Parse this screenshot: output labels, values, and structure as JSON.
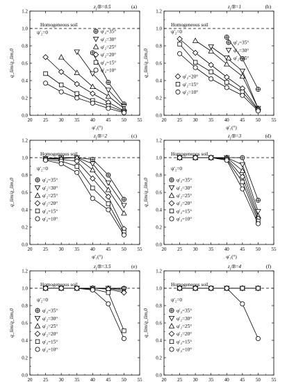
{
  "figure": {
    "ylabel": "q_lim/q_lim,0",
    "xlabel": "φ'₁(°)",
    "reference_label": "Homogeneous soil",
    "phi2_zero_label": "ψ'₂=0"
  },
  "chart_data": [
    {
      "type": "line",
      "panel": "(a)",
      "ratio_label": "z_t/B=0.5",
      "xlim": [
        20,
        55
      ],
      "ylim": [
        0,
        1.2
      ],
      "xticks": [
        20,
        25,
        30,
        35,
        40,
        45,
        50,
        55
      ],
      "yticks": [
        0.0,
        0.2,
        0.4,
        0.6,
        0.8,
        1.0,
        1.2
      ],
      "reference_line": 1.0,
      "legend_position": "upper right",
      "series": [
        {
          "name": "φ'₂=35°",
          "marker": "crossed-circle",
          "x": [
            40,
            45,
            50
          ],
          "y": [
            0.72,
            0.38,
            0.13
          ]
        },
        {
          "name": "φ'₂=30°",
          "marker": "triangle-down",
          "x": [
            35,
            40,
            45,
            50
          ],
          "y": [
            0.73,
            0.48,
            0.29,
            0.1
          ]
        },
        {
          "name": "φ'₂=25°",
          "marker": "triangle-up",
          "x": [
            30,
            35,
            40,
            45,
            50
          ],
          "y": [
            0.67,
            0.49,
            0.33,
            0.22,
            0.08
          ]
        },
        {
          "name": "φ'₂=20°",
          "marker": "diamond",
          "x": [
            25,
            30,
            35,
            40,
            45,
            50
          ],
          "y": [
            0.67,
            0.5,
            0.36,
            0.25,
            0.15,
            0.05
          ]
        },
        {
          "name": "φ'₂=15°",
          "marker": "square",
          "x": [
            25,
            30,
            35,
            40,
            45,
            50
          ],
          "y": [
            0.48,
            0.35,
            0.25,
            0.17,
            0.11,
            0.04
          ]
        },
        {
          "name": "φ'₂=10°",
          "marker": "circle",
          "x": [
            25,
            30,
            35,
            40,
            45,
            50
          ],
          "y": [
            0.37,
            0.27,
            0.2,
            0.14,
            0.08,
            0.03
          ]
        }
      ]
    },
    {
      "type": "line",
      "panel": "(b)",
      "ratio_label": "z_t/B=1",
      "xlim": [
        20,
        55
      ],
      "ylim": [
        0,
        1.2
      ],
      "xticks": [
        20,
        25,
        30,
        35,
        40,
        45,
        50,
        55
      ],
      "yticks": [
        0.0,
        0.2,
        0.4,
        0.6,
        0.8,
        1.0,
        1.2
      ],
      "reference_line": 1.0,
      "legend_position": "split",
      "series": [
        {
          "name": "φ'₂=35°",
          "marker": "crossed-circle",
          "x": [
            40,
            45,
            50
          ],
          "y": [
            0.9,
            0.65,
            0.3
          ]
        },
        {
          "name": "φ'₂=30°",
          "marker": "triangle-down",
          "x": [
            35,
            40,
            45,
            50
          ],
          "y": [
            0.79,
            0.66,
            0.51,
            0.08
          ]
        },
        {
          "name": "φ'₂=25°",
          "marker": "triangle-up",
          "x": [
            30,
            35,
            40,
            45,
            50
          ],
          "y": [
            0.86,
            0.74,
            0.59,
            0.45,
            0.08
          ]
        },
        {
          "name": "φ'₂=20°",
          "marker": "diamond",
          "x": [
            25,
            30,
            35,
            40,
            45,
            50
          ],
          "y": [
            0.88,
            0.72,
            0.58,
            0.44,
            0.31,
            0.07
          ]
        },
        {
          "name": "φ'₂=15°",
          "marker": "square",
          "x": [
            25,
            30,
            35,
            40,
            45,
            50
          ],
          "y": [
            0.82,
            0.61,
            0.5,
            0.38,
            0.27,
            0.06
          ]
        },
        {
          "name": "φ'₂=10°",
          "marker": "circle",
          "x": [
            25,
            30,
            35,
            40,
            45,
            50
          ],
          "y": [
            0.71,
            0.55,
            0.42,
            0.32,
            0.23,
            0.05
          ]
        }
      ]
    },
    {
      "type": "line",
      "panel": "(c)",
      "ratio_label": "z_t/B=2",
      "xlim": [
        20,
        55
      ],
      "ylim": [
        0,
        1.2
      ],
      "xticks": [
        20,
        25,
        30,
        35,
        40,
        45,
        50,
        55
      ],
      "yticks": [
        0.0,
        0.2,
        0.4,
        0.6,
        0.8,
        1.0,
        1.2
      ],
      "reference_line": 1.0,
      "legend_position": "lower left",
      "series": [
        {
          "name": "φ'₂=35°",
          "marker": "crossed-circle",
          "x": [
            25,
            30,
            35,
            40,
            45,
            50
          ],
          "y": [
            0.99,
            1.0,
            1.0,
            0.98,
            0.8,
            0.52
          ]
        },
        {
          "name": "φ'₂=30°",
          "marker": "triangle-down",
          "x": [
            25,
            30,
            35,
            40,
            45,
            50
          ],
          "y": [
            0.99,
            1.0,
            1.0,
            0.93,
            0.71,
            0.45
          ]
        },
        {
          "name": "φ'₂=25°",
          "marker": "triangle-up",
          "x": [
            25,
            30,
            35,
            40,
            45,
            50
          ],
          "y": [
            0.99,
            0.99,
            1.0,
            0.86,
            0.63,
            0.36
          ]
        },
        {
          "name": "φ'₂=20°",
          "marker": "diamond",
          "x": [
            25,
            30,
            35,
            40,
            45,
            50
          ],
          "y": [
            0.99,
            0.98,
            0.96,
            0.76,
            0.55,
            0.18
          ]
        },
        {
          "name": "φ'₂=15°",
          "marker": "square",
          "x": [
            25,
            30,
            35,
            40,
            45,
            50
          ],
          "y": [
            0.98,
            0.96,
            0.9,
            0.65,
            0.47,
            0.14
          ]
        },
        {
          "name": "φ'₂=10°",
          "marker": "circle",
          "x": [
            25,
            30,
            35,
            40,
            45,
            50
          ],
          "y": [
            0.97,
            0.93,
            0.83,
            0.53,
            0.4,
            0.11
          ]
        }
      ]
    },
    {
      "type": "line",
      "panel": "(d)",
      "ratio_label": "z_t/B=3",
      "xlim": [
        20,
        55
      ],
      "ylim": [
        0,
        1.2
      ],
      "xticks": [
        20,
        25,
        30,
        35,
        40,
        45,
        50,
        55
      ],
      "yticks": [
        0.0,
        0.2,
        0.4,
        0.6,
        0.8,
        1.0,
        1.2
      ],
      "reference_line": 1.0,
      "legend_position": "lower left",
      "series": [
        {
          "name": "φ'₂=35°",
          "marker": "crossed-circle",
          "x": [
            25,
            30,
            35,
            40,
            45,
            50
          ],
          "y": [
            1.0,
            1.0,
            1.0,
            1.0,
            1.0,
            0.51
          ]
        },
        {
          "name": "φ'₂=30°",
          "marker": "triangle-down",
          "x": [
            25,
            30,
            35,
            40,
            45,
            50
          ],
          "y": [
            1.0,
            1.0,
            1.0,
            1.0,
            0.92,
            0.38
          ]
        },
        {
          "name": "φ'₂=25°",
          "marker": "triangle-up",
          "x": [
            25,
            30,
            35,
            40,
            45,
            50
          ],
          "y": [
            1.0,
            1.0,
            1.0,
            1.0,
            0.85,
            0.33
          ]
        },
        {
          "name": "φ'₂=20°",
          "marker": "diamond",
          "x": [
            25,
            30,
            35,
            40,
            45,
            50
          ],
          "y": [
            1.0,
            1.0,
            1.0,
            0.99,
            0.78,
            0.3
          ]
        },
        {
          "name": "φ'₂=15°",
          "marker": "square",
          "x": [
            25,
            30,
            35,
            40,
            45,
            50
          ],
          "y": [
            1.0,
            1.0,
            1.0,
            0.98,
            0.72,
            0.27
          ]
        },
        {
          "name": "φ'₂=10°",
          "marker": "circle",
          "x": [
            25,
            30,
            35,
            40,
            45,
            50
          ],
          "y": [
            1.0,
            1.0,
            1.0,
            0.97,
            0.64,
            0.24
          ]
        }
      ]
    },
    {
      "type": "line",
      "panel": "(e)",
      "ratio_label": "z_t/B=3.5",
      "xlim": [
        20,
        55
      ],
      "ylim": [
        0,
        1.2
      ],
      "xticks": [
        20,
        25,
        30,
        35,
        40,
        45,
        50,
        55
      ],
      "yticks": [
        0.0,
        0.2,
        0.4,
        0.6,
        0.8,
        1.0,
        1.2
      ],
      "reference_line": 1.0,
      "legend_position": "lower left",
      "series": [
        {
          "name": "φ'₂=35°",
          "marker": "crossed-circle",
          "x": [
            25,
            30,
            35,
            40,
            45,
            50
          ],
          "y": [
            1.0,
            1.0,
            1.0,
            1.0,
            1.0,
            1.0
          ]
        },
        {
          "name": "φ'₂=30°",
          "marker": "triangle-down",
          "x": [
            25,
            30,
            35,
            40,
            45,
            50
          ],
          "y": [
            1.0,
            1.0,
            1.0,
            1.0,
            1.0,
            0.99
          ]
        },
        {
          "name": "φ'₂=25°",
          "marker": "triangle-up",
          "x": [
            25,
            30,
            35,
            40,
            45,
            50
          ],
          "y": [
            1.0,
            1.0,
            1.0,
            1.0,
            1.0,
            0.97
          ]
        },
        {
          "name": "φ'₂=20°",
          "marker": "diamond",
          "x": [
            25,
            30,
            35,
            40,
            45,
            50
          ],
          "y": [
            1.0,
            1.0,
            1.0,
            1.0,
            0.99,
            0.95
          ]
        },
        {
          "name": "φ'₂=15°",
          "marker": "square",
          "x": [
            25,
            30,
            35,
            40,
            45,
            50
          ],
          "y": [
            1.0,
            1.0,
            1.0,
            0.99,
            0.95,
            0.51
          ]
        },
        {
          "name": "φ'₂=10°",
          "marker": "circle",
          "x": [
            25,
            30,
            35,
            40,
            45,
            50
          ],
          "y": [
            1.0,
            1.0,
            1.0,
            0.98,
            0.82,
            0.42
          ]
        }
      ]
    },
    {
      "type": "line",
      "panel": "(f)",
      "ratio_label": "z_t/B=4",
      "xlim": [
        20,
        55
      ],
      "ylim": [
        0,
        1.2
      ],
      "xticks": [
        20,
        25,
        30,
        35,
        40,
        45,
        50,
        55
      ],
      "yticks": [
        0.0,
        0.2,
        0.4,
        0.6,
        0.8,
        1.0,
        1.2
      ],
      "reference_line": 1.0,
      "legend_position": "lower left",
      "series": [
        {
          "name": "φ'₂=35°",
          "marker": "crossed-circle",
          "x": [
            25,
            30,
            35,
            40,
            45,
            50
          ],
          "y": [
            1.0,
            1.0,
            1.0,
            1.0,
            1.0,
            1.0
          ]
        },
        {
          "name": "φ'₂=30°",
          "marker": "triangle-down",
          "x": [
            25,
            30,
            35,
            40,
            45,
            50
          ],
          "y": [
            1.0,
            1.0,
            1.0,
            1.0,
            1.0,
            1.0
          ]
        },
        {
          "name": "φ'₂=25°",
          "marker": "triangle-up",
          "x": [
            25,
            30,
            35,
            40,
            45,
            50
          ],
          "y": [
            1.0,
            1.0,
            1.0,
            1.0,
            1.0,
            1.0
          ]
        },
        {
          "name": "φ'₂=20°",
          "marker": "diamond",
          "x": [
            25,
            30,
            35,
            40,
            45,
            50
          ],
          "y": [
            1.0,
            1.0,
            1.0,
            1.0,
            1.0,
            1.0
          ]
        },
        {
          "name": "φ'₂=15°",
          "marker": "square",
          "x": [
            25,
            30,
            35,
            40,
            45,
            50
          ],
          "y": [
            1.0,
            1.0,
            1.0,
            1.0,
            1.0,
            1.0
          ]
        },
        {
          "name": "φ'₂=10°",
          "marker": "circle",
          "x": [
            25,
            30,
            35,
            40,
            45,
            50
          ],
          "y": [
            1.0,
            1.0,
            1.0,
            1.0,
            0.82,
            0.42
          ]
        }
      ]
    }
  ]
}
